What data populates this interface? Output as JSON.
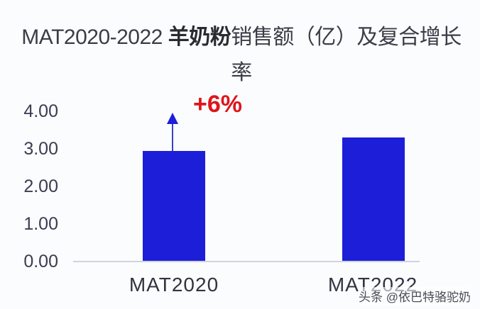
{
  "header": {
    "title_prefix": "MAT2020-2022 ",
    "title_bold": "羊奶粉",
    "title_suffix": "销售额（亿）及复合增长率"
  },
  "axis": {
    "y_ticks": [
      "4.00",
      "3.00",
      "2.00",
      "1.00",
      "0.00"
    ]
  },
  "annotation": {
    "label": "+6%",
    "color": "#e0141a"
  },
  "watermark": "头条 @依巴特骆驼奶",
  "colors": {
    "bar": "#1c1ed8",
    "annotation": "#e0141a"
  },
  "chart_data": {
    "type": "bar",
    "title": "MAT2020-2022 羊奶粉销售额（亿）及复合增长率",
    "categories": [
      "MAT2020",
      "MAT2022"
    ],
    "values": [
      2.94,
      3.3
    ],
    "xlabel": "",
    "ylabel": "",
    "ylim": [
      0,
      4
    ],
    "yticks": [
      0,
      1,
      2,
      3,
      4
    ],
    "grid": false,
    "legend": null,
    "annotations": [
      {
        "text": "+6%",
        "type": "growth-arrow",
        "anchor": "MAT2020"
      }
    ]
  }
}
